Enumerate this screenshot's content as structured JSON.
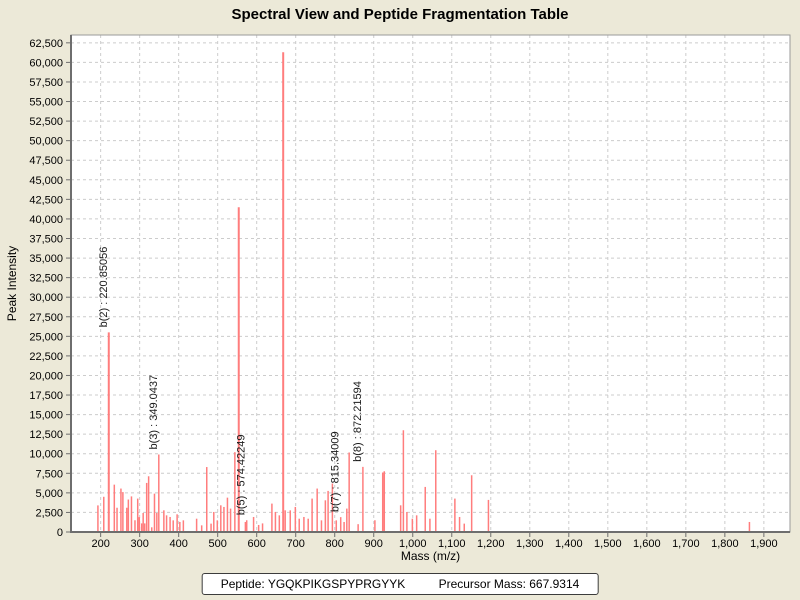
{
  "title": "Spectral View and Peptide Fragmentation Table",
  "footer": {
    "peptide": "Peptide: YGQKPIKGSPYPRGYYK",
    "precursor": "Precursor Mass: 667.9314"
  },
  "chart_data": {
    "type": "bar",
    "subtype": "mass-spectrum-stick-plot",
    "title": "Spectral View and Peptide Fragmentation Table",
    "xlabel": "Mass (m/z)",
    "ylabel": "Peak Intensity",
    "xlim": [
      124,
      1967
    ],
    "ylim": [
      0,
      63500
    ],
    "x_ticks": {
      "start": 200,
      "end": 1900,
      "step": 100
    },
    "y_ticks": {
      "start": 0,
      "end": 62500,
      "step": 2500
    },
    "grid": true,
    "legend": "none",
    "colors": {
      "page_bg": "#ece9d8",
      "plot_bg": "#ffffff",
      "grid": "#cccccc",
      "axis": "#6e6e6e",
      "frame": "#9a9a9a",
      "peak": "#ff7d7d",
      "label": "#1a1a1a",
      "text": "#000000"
    },
    "annotated_fragments": [
      {
        "ion": "b(2)",
        "mz": 220.85056
      },
      {
        "ion": "b(3)",
        "mz": 349.0437
      },
      {
        "ion": "b(5)",
        "mz": 574.42249
      },
      {
        "ion": "b(7)",
        "mz": 815.34009
      },
      {
        "ion": "b(8)",
        "mz": 872.21594
      }
    ],
    "peaks": [
      {
        "mz": 193,
        "i": 3400
      },
      {
        "mz": 208,
        "i": 4500
      },
      {
        "mz": 220.85056,
        "i": 25500,
        "label": "b(2) : 220.85056"
      },
      {
        "mz": 235,
        "i": 6050
      },
      {
        "mz": 242,
        "i": 3100
      },
      {
        "mz": 252,
        "i": 5550
      },
      {
        "mz": 257,
        "i": 5100
      },
      {
        "mz": 267,
        "i": 3100
      },
      {
        "mz": 271,
        "i": 4150
      },
      {
        "mz": 279,
        "i": 4550
      },
      {
        "mz": 288,
        "i": 1500
      },
      {
        "mz": 295,
        "i": 4270
      },
      {
        "mz": 299,
        "i": 1900
      },
      {
        "mz": 305,
        "i": 1100
      },
      {
        "mz": 309,
        "i": 2430
      },
      {
        "mz": 313,
        "i": 1100
      },
      {
        "mz": 318,
        "i": 6270
      },
      {
        "mz": 323,
        "i": 7120
      },
      {
        "mz": 331,
        "i": 600
      },
      {
        "mz": 338,
        "i": 4900
      },
      {
        "mz": 344,
        "i": 2430
      },
      {
        "mz": 349.0437,
        "i": 9900,
        "label": "b(3) : 349.0437"
      },
      {
        "mz": 362,
        "i": 2770
      },
      {
        "mz": 369,
        "i": 2130
      },
      {
        "mz": 378,
        "i": 1920
      },
      {
        "mz": 386,
        "i": 1490
      },
      {
        "mz": 396,
        "i": 2260
      },
      {
        "mz": 403,
        "i": 1280
      },
      {
        "mz": 412,
        "i": 1490
      },
      {
        "mz": 446,
        "i": 1700
      },
      {
        "mz": 459,
        "i": 850
      },
      {
        "mz": 472,
        "i": 8300
      },
      {
        "mz": 483,
        "i": 1070
      },
      {
        "mz": 490,
        "i": 2560
      },
      {
        "mz": 499,
        "i": 1490
      },
      {
        "mz": 508,
        "i": 3410
      },
      {
        "mz": 516,
        "i": 3200
      },
      {
        "mz": 525,
        "i": 4390
      },
      {
        "mz": 533,
        "i": 2990
      },
      {
        "mz": 544,
        "i": 10200
      },
      {
        "mz": 554,
        "i": 41500
      },
      {
        "mz": 571,
        "i": 1280
      },
      {
        "mz": 574.42249,
        "i": 1500,
        "label": "b(5) : 574.42249"
      },
      {
        "mz": 592,
        "i": 1920
      },
      {
        "mz": 605,
        "i": 900
      },
      {
        "mz": 615,
        "i": 1100
      },
      {
        "mz": 639,
        "i": 3630
      },
      {
        "mz": 648,
        "i": 2560
      },
      {
        "mz": 658,
        "i": 2130
      },
      {
        "mz": 667.9,
        "i": 61300
      },
      {
        "mz": 673,
        "i": 2770
      },
      {
        "mz": 686,
        "i": 2770
      },
      {
        "mz": 699,
        "i": 3200
      },
      {
        "mz": 709,
        "i": 1700
      },
      {
        "mz": 721,
        "i": 1920
      },
      {
        "mz": 732,
        "i": 1700
      },
      {
        "mz": 742,
        "i": 4270
      },
      {
        "mz": 755,
        "i": 5550
      },
      {
        "mz": 766,
        "i": 1490
      },
      {
        "mz": 776,
        "i": 4050
      },
      {
        "mz": 783,
        "i": 5250
      },
      {
        "mz": 794,
        "i": 6190
      },
      {
        "mz": 804,
        "i": 1490
      },
      {
        "mz": 815.34009,
        "i": 1900,
        "label": "b(7) : 815.34009"
      },
      {
        "mz": 824,
        "i": 1280
      },
      {
        "mz": 831,
        "i": 2990
      },
      {
        "mz": 837,
        "i": 10160
      },
      {
        "mz": 860,
        "i": 1000
      },
      {
        "mz": 872.21594,
        "i": 8320,
        "label": "b(8) : 872.21594"
      },
      {
        "mz": 903,
        "i": 1500
      },
      {
        "mz": 923,
        "i": 7600
      },
      {
        "mz": 927,
        "i": 7760
      },
      {
        "mz": 969,
        "i": 3410
      },
      {
        "mz": 976,
        "i": 13000
      },
      {
        "mz": 985,
        "i": 2560
      },
      {
        "mz": 999,
        "i": 1700
      },
      {
        "mz": 1010,
        "i": 2130
      },
      {
        "mz": 1032,
        "i": 5760
      },
      {
        "mz": 1044,
        "i": 1700
      },
      {
        "mz": 1059,
        "i": 10450
      },
      {
        "mz": 1108,
        "i": 4270
      },
      {
        "mz": 1120,
        "i": 1920
      },
      {
        "mz": 1132,
        "i": 1070
      },
      {
        "mz": 1151,
        "i": 7250
      },
      {
        "mz": 1194,
        "i": 4100
      },
      {
        "mz": 1863,
        "i": 1280
      }
    ]
  }
}
